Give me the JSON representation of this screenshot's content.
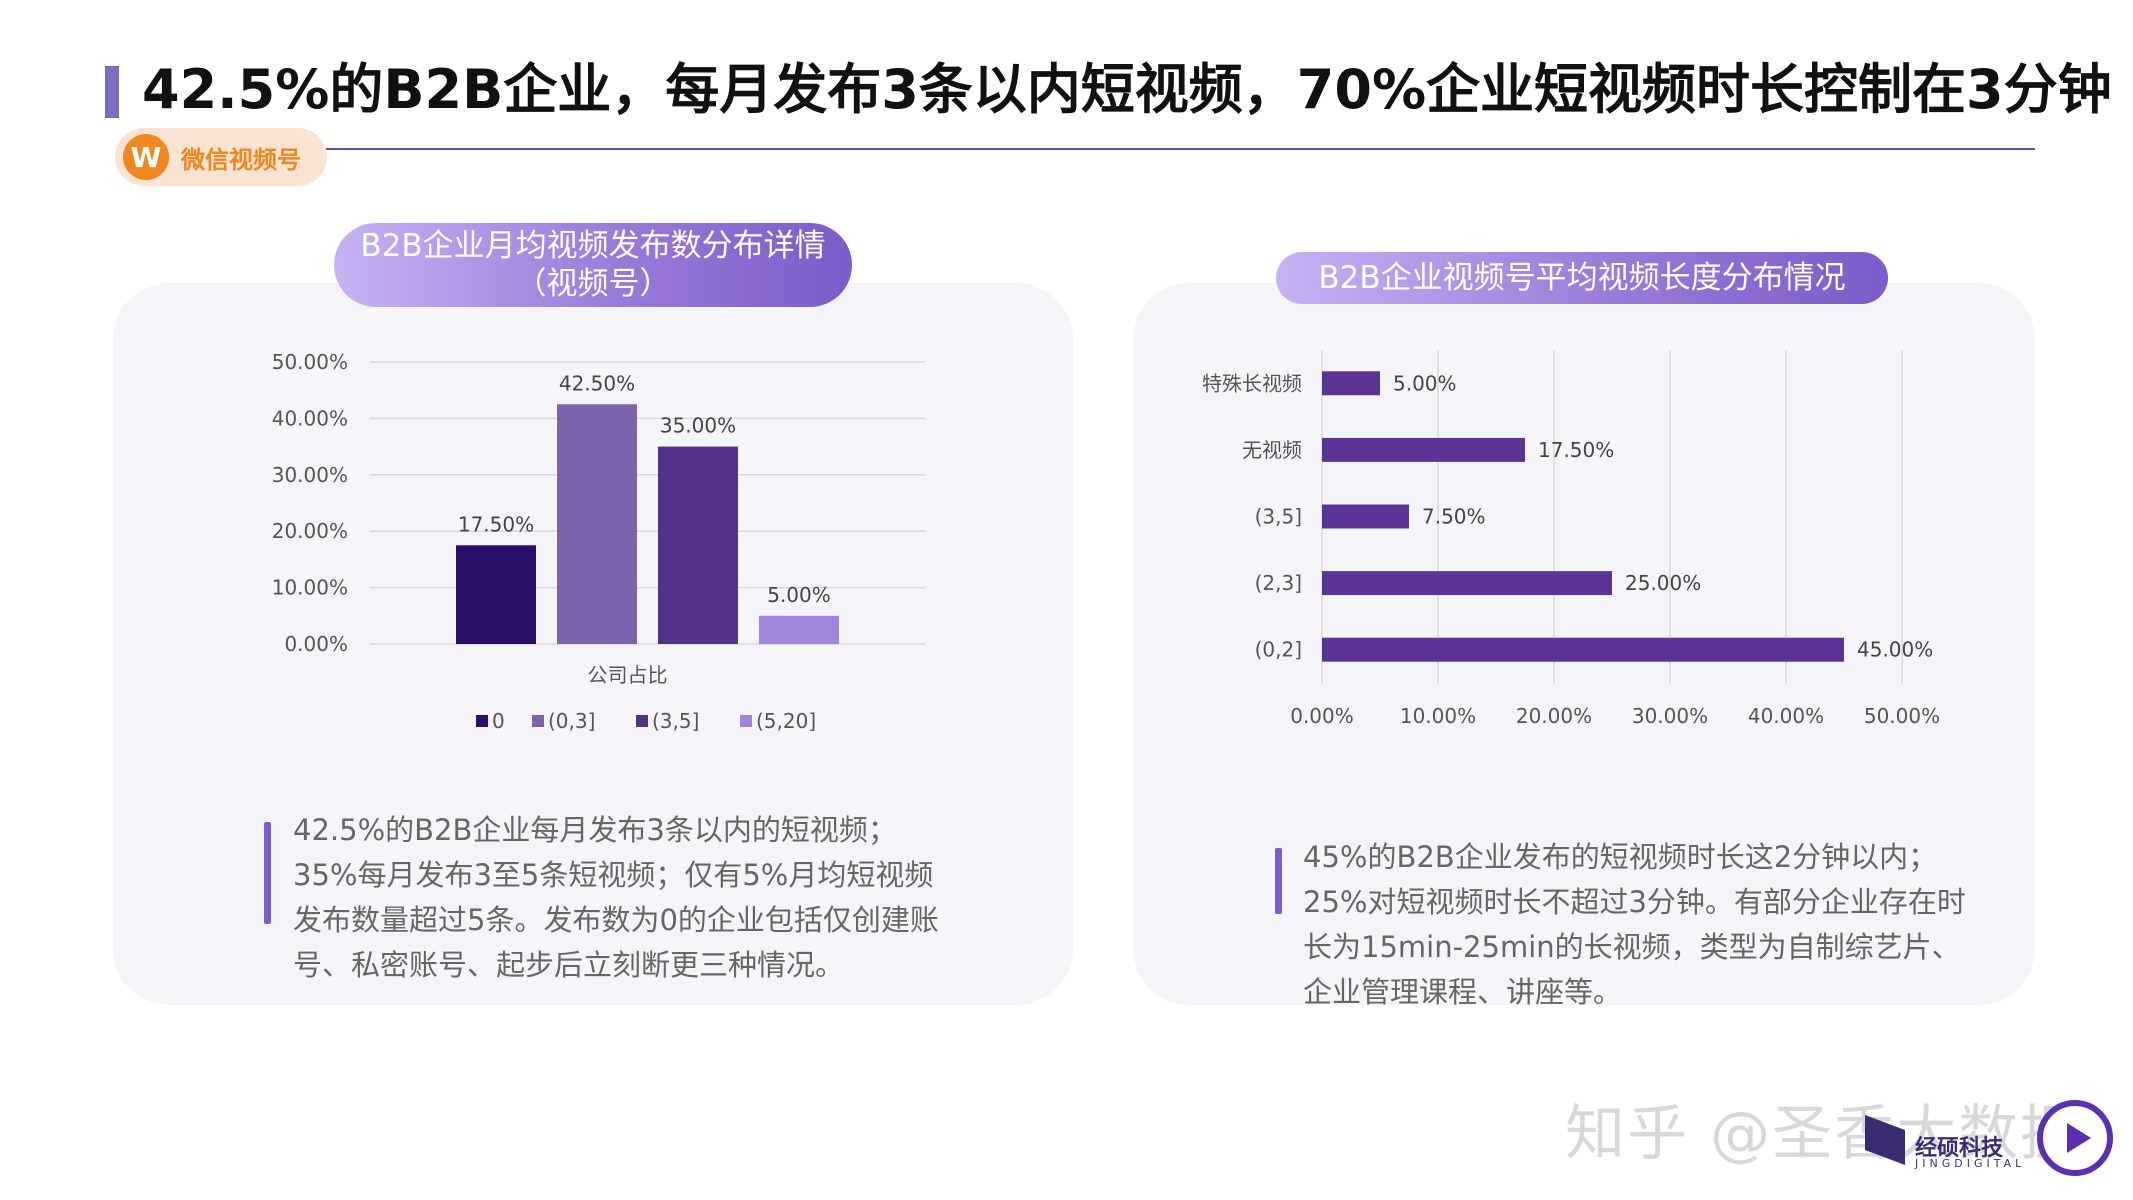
{
  "header": {
    "title": "42.5%的B2B企业，每月发布3条以内短视频，70%企业短视频时长控制在3分钟",
    "badge_icon": "W",
    "badge_label": "微信视频号"
  },
  "left_panel": {
    "pill_line1": "B2B企业月均视频发布数分布详情",
    "pill_line2": "（视频号）",
    "description": "42.5%的B2B企业每月发布3条以内的短视频；35%每月发布3至5条短视频；仅有5%月均短视频发布数量超过5条。发布数为0的企业包括仅创建账号、私密账号、起步后立刻断更三种情况。"
  },
  "right_panel": {
    "pill_label": "B2B企业视频号平均视频长度分布情况",
    "description": "45%的B2B企业发布的短视频时长这2分钟以内；25%对短视频时长不超过3分钟。有部分企业存在时长为15min-25min的长视频，类型为自制综艺片、企业管理课程、讲座等。"
  },
  "watermark": {
    "text": "知乎 @圣香大数据",
    "logo_text": "经硕科技",
    "logo_sub": "JINGDIGITAL",
    "icon": "play-icon"
  },
  "chart_data": [
    {
      "type": "bar",
      "orientation": "vertical",
      "categories": [
        "公司占比"
      ],
      "series": [
        {
          "name": "0",
          "values": [
            17.5
          ],
          "label": "17.50%",
          "color": "#2d0e6b"
        },
        {
          "name": "(0,3]",
          "values": [
            42.5
          ],
          "label": "42.50%",
          "color": "#7c63ac"
        },
        {
          "name": "(3,5]",
          "values": [
            35.0
          ],
          "label": "35.00%",
          "color": "#523188"
        },
        {
          "name": "(5,20]",
          "values": [
            5.0
          ],
          "label": "5.00%",
          "color": "#a384dc"
        }
      ],
      "ylim": [
        0,
        50
      ],
      "yticks": [
        "0.00%",
        "10.00%",
        "20.00%",
        "30.00%",
        "40.00%",
        "50.00%"
      ],
      "xlabel": "公司占比",
      "grid": true,
      "legend_position": "bottom"
    },
    {
      "type": "bar",
      "orientation": "horizontal",
      "categories": [
        "特殊长视频",
        "无视频",
        "(3,5]",
        "(2,3]",
        "(0,2]"
      ],
      "values": [
        5.0,
        17.5,
        7.5,
        25.0,
        45.0
      ],
      "labels": [
        "5.00%",
        "17.50%",
        "7.50%",
        "25.00%",
        "45.00%"
      ],
      "color": "#5a3596",
      "xlim": [
        0,
        50
      ],
      "xticks": [
        "0.00%",
        "10.00%",
        "20.00%",
        "30.00%",
        "40.00%",
        "50.00%"
      ],
      "grid": true
    }
  ]
}
